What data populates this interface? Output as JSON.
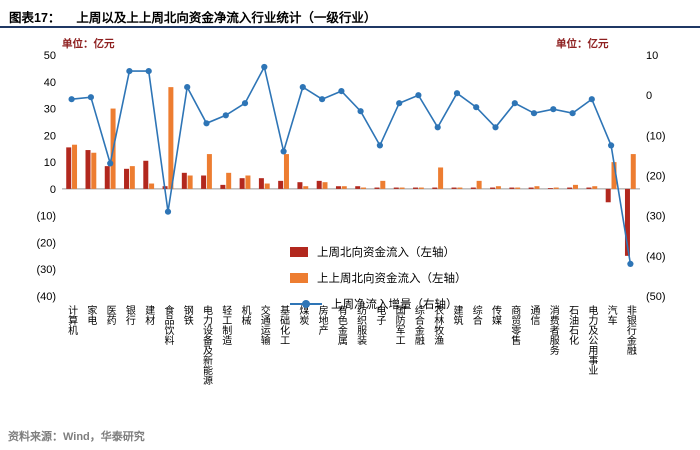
{
  "header": {
    "tag": "图表17：",
    "title": "上周以及上上周北向资金净流入行业统计（一级行业）"
  },
  "chart": {
    "left_unit": "单位：亿元",
    "right_unit": "单位：亿元"
  },
  "legend": {
    "items": [
      {
        "label": "上周北向资金流入（左轴）",
        "type": "bar",
        "color": "#B2281E"
      },
      {
        "label": "上上周北向资金流入（左轴）",
        "type": "bar",
        "color": "#ED7D31"
      },
      {
        "label": "上周净流入增量（右轴）",
        "type": "line",
        "color": "#2E75B6"
      }
    ]
  },
  "footer": {
    "source": "资料来源：Wind，华泰研究"
  },
  "chart_data": {
    "type": "combo",
    "categories": [
      "计算机",
      "家电",
      "医药",
      "银行",
      "建材",
      "食品饮料",
      "钢铁",
      "电力设备及新能源",
      "轻工制造",
      "机械",
      "交通运输",
      "基础化工",
      "煤炭",
      "房地产",
      "有色金属",
      "纺织服装",
      "电子",
      "国防军工",
      "综合金融",
      "农林牧渔",
      "建筑",
      "综合",
      "传媒",
      "商贸零售",
      "通信",
      "消费者服务",
      "石油石化",
      "电力及公用事业",
      "汽车",
      "非银行金融"
    ],
    "series": [
      {
        "name": "上周北向资金流入（左轴）",
        "type": "bar",
        "axis": "left",
        "color": "#B2281E",
        "values": [
          15.5,
          14.5,
          8.5,
          7.5,
          10.5,
          1,
          6,
          5,
          1.5,
          4,
          4,
          3,
          2.5,
          3,
          1,
          1,
          0.5,
          0.5,
          0.5,
          0.5,
          0.5,
          0.5,
          0.5,
          0.5,
          0.5,
          0.3,
          0.5,
          0.5,
          -5,
          -25
        ]
      },
      {
        "name": "上上周北向资金流入（左轴）",
        "type": "bar",
        "axis": "left",
        "color": "#ED7D31",
        "values": [
          16.5,
          13.5,
          30,
          8.5,
          2,
          38,
          5,
          13,
          6,
          5,
          2,
          13,
          1,
          2.5,
          1,
          0.5,
          3,
          0.5,
          0.5,
          8,
          0.5,
          3,
          1,
          0.5,
          1,
          0.5,
          1.5,
          1,
          10,
          13
        ]
      },
      {
        "name": "上周净流入增量（右轴）",
        "type": "line",
        "axis": "right",
        "color": "#2E75B6",
        "values": [
          -1,
          -0.5,
          -17,
          6,
          6,
          -29,
          2,
          -7,
          -5,
          -2,
          7,
          -14,
          2,
          -1,
          1,
          -4,
          -12.5,
          -2,
          0,
          -8,
          0.5,
          -3,
          -8,
          -2,
          -4.5,
          -3.5,
          -4.5,
          -1,
          -12.5,
          -42
        ]
      }
    ],
    "left_axis": {
      "unit": "亿元",
      "ticks": [
        50,
        40,
        30,
        20,
        10,
        0,
        -10,
        -20,
        -30,
        -40
      ],
      "range": [
        -40,
        50
      ]
    },
    "right_axis": {
      "unit": "亿元",
      "ticks": [
        10,
        0,
        -10,
        -20,
        -30,
        -40,
        -50
      ],
      "range": [
        -50,
        10
      ]
    },
    "negative_format": "parentheses",
    "grid": false,
    "legend_position": "inside-center-bottom"
  }
}
